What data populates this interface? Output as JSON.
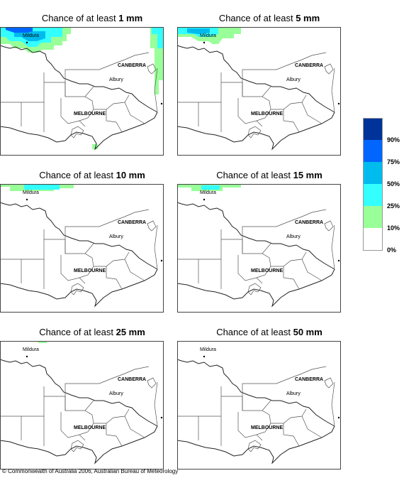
{
  "panels": [
    {
      "title_prefix": "Chance of at least ",
      "threshold": "1 mm"
    },
    {
      "title_prefix": "Chance of at least ",
      "threshold": "5 mm"
    },
    {
      "title_prefix": "Chance of at least ",
      "threshold": "10 mm"
    },
    {
      "title_prefix": "Chance of at least ",
      "threshold": "15 mm"
    },
    {
      "title_prefix": "Chance of at least ",
      "threshold": "25 mm"
    },
    {
      "title_prefix": "Chance of at least ",
      "threshold": "50 mm"
    }
  ],
  "places": {
    "mildura": "Mildura",
    "canberra": "CANBERRA",
    "albury": "Albury",
    "melbourne": "MELBOURNE"
  },
  "legend": {
    "bins": [
      {
        "label": "90%",
        "color": "#003399"
      },
      {
        "label": "75%",
        "color": "#0066ff"
      },
      {
        "label": "50%",
        "color": "#00bbee"
      },
      {
        "label": "25%",
        "color": "#33ffff"
      },
      {
        "label": "10%",
        "color": "#99ff99"
      },
      {
        "label": "0%",
        "color": "#ffffff"
      }
    ]
  },
  "copyright": "© Commonwealth of Australia 2006, Australian Bureau of Meteorology"
}
